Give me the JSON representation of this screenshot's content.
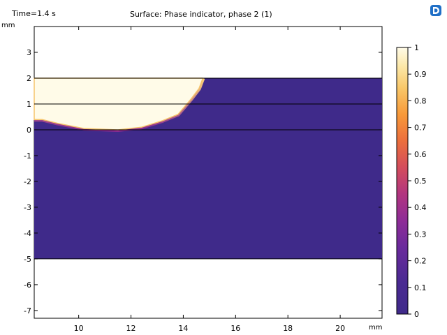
{
  "header": {
    "time_label": "Time=1.4 s",
    "title": "Surface: Phase indicator, phase 2 (1)"
  },
  "axes": {
    "x_unit": "mm",
    "y_unit": "mm",
    "x_ticks": [
      "10",
      "12",
      "14",
      "16",
      "18",
      "20"
    ],
    "y_ticks": [
      "3",
      "2",
      "1",
      "0",
      "-1",
      "-2",
      "-3",
      "-4",
      "-5",
      "-6",
      "-7"
    ]
  },
  "colorbar": {
    "ticks": [
      "1",
      "0.9",
      "0.8",
      "0.7",
      "0.6",
      "0.5",
      "0.4",
      "0.3",
      "0.2",
      "0.1",
      "0"
    ],
    "colormap_name": "plasma-like",
    "low_color": "#3f2a8a",
    "high_color": "#fffbe8"
  },
  "logo": {
    "icon": "app-logo-icon",
    "color": "#1f6fc7"
  },
  "chart_data": {
    "type": "heatmap",
    "title": "Surface: Phase indicator, phase 2 (1)",
    "xlabel": "mm",
    "ylabel": "mm",
    "xlim": [
      8.3,
      21.6
    ],
    "ylim": [
      -7.3,
      4.0
    ],
    "x_ticks": [
      10,
      12,
      14,
      16,
      18,
      20
    ],
    "y_ticks": [
      3,
      2,
      1,
      0,
      -1,
      -2,
      -3,
      -4,
      -5,
      -6,
      -7
    ],
    "domain": {
      "x": [
        8.3,
        21.6
      ],
      "y": [
        -5,
        2
      ]
    },
    "horizontal_lines_y": [
      2,
      1,
      0,
      -5
    ],
    "phase2_region_outline": [
      [
        8.3,
        2.0
      ],
      [
        14.75,
        2.0
      ],
      [
        14.6,
        1.6
      ],
      [
        14.3,
        1.2
      ],
      [
        13.8,
        0.6
      ],
      [
        13.2,
        0.35
      ],
      [
        12.4,
        0.1
      ],
      [
        11.5,
        0.0
      ],
      [
        10.2,
        0.05
      ],
      [
        9.2,
        0.25
      ],
      [
        8.6,
        0.4
      ],
      [
        8.3,
        0.4
      ]
    ],
    "value_inside_phase2": 1,
    "value_outside_phase2": 0,
    "colorbar_range": [
      0,
      1
    ]
  }
}
